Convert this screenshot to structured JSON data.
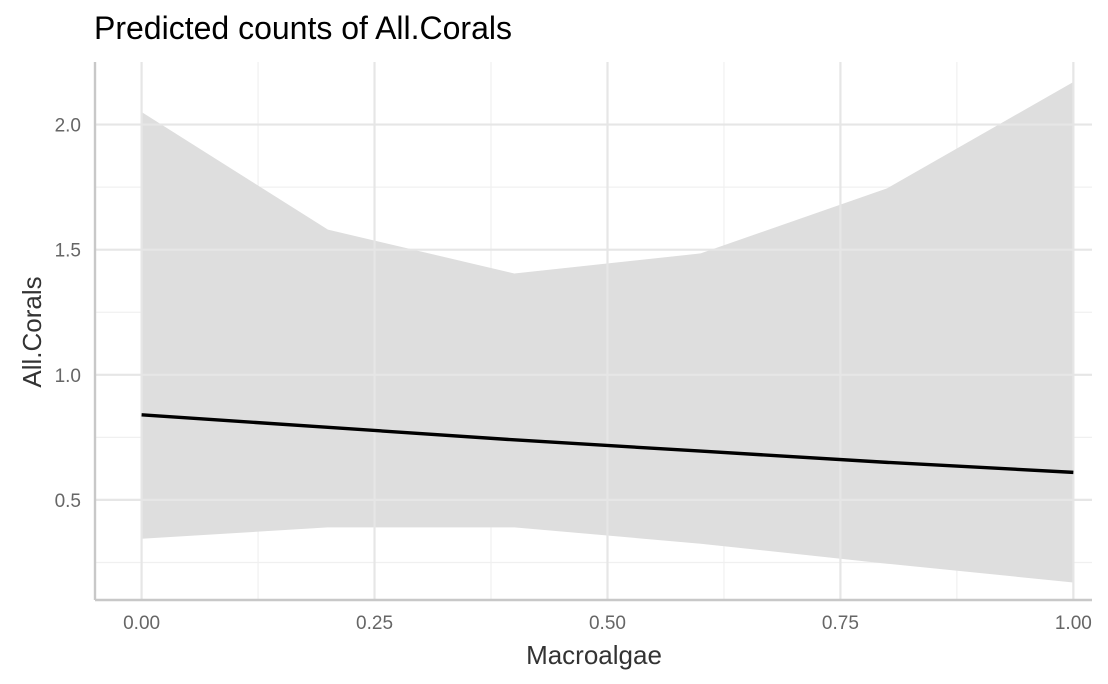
{
  "chart_data": {
    "type": "line",
    "title": "Predicted counts of All.Corals",
    "xlabel": "Macroalgae",
    "ylabel": "All.Corals",
    "xlim": [
      -0.05,
      1.02
    ],
    "ylim": [
      0.1,
      2.25
    ],
    "x_ticks": [
      0.0,
      0.25,
      0.5,
      0.75,
      1.0
    ],
    "x_tick_labels": [
      "0.00",
      "0.25",
      "0.50",
      "0.75",
      "1.00"
    ],
    "x_minor_ticks": [
      0.125,
      0.375,
      0.625,
      0.875
    ],
    "y_ticks": [
      0.5,
      1.0,
      1.5,
      2.0
    ],
    "y_tick_labels": [
      "0.5",
      "1.0",
      "1.5",
      "2.0"
    ],
    "y_minor_ticks": [
      0.25,
      0.75,
      1.25,
      1.75
    ],
    "grid": true,
    "legend": "none",
    "line_color": "#000000",
    "ribbon_color": "#dedede",
    "series": [
      {
        "x": [
          0.0,
          0.2,
          0.4,
          0.6,
          0.8,
          1.0
        ],
        "y": [
          0.84,
          0.79,
          0.74,
          0.695,
          0.65,
          0.61
        ],
        "lower": [
          0.345,
          0.39,
          0.39,
          0.325,
          0.245,
          0.17
        ],
        "upper": [
          2.05,
          1.58,
          1.405,
          1.485,
          1.745,
          2.17
        ]
      }
    ]
  }
}
